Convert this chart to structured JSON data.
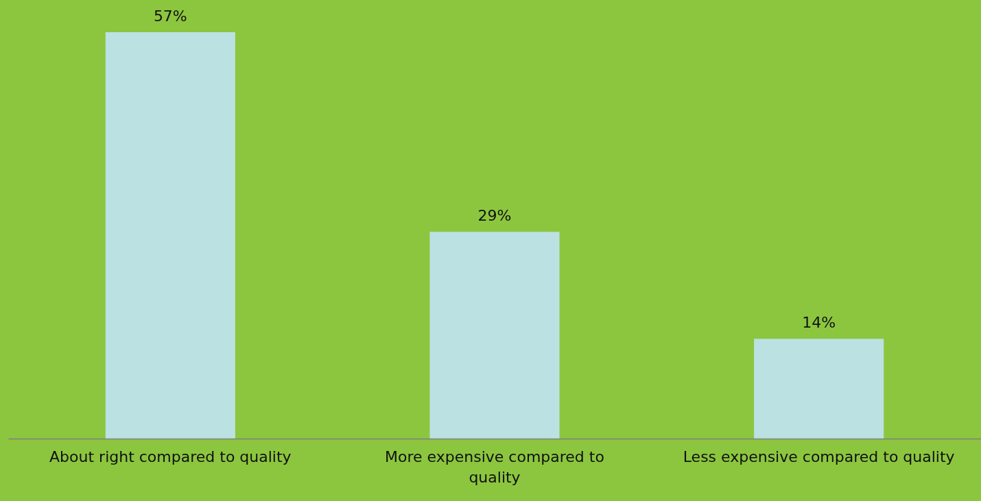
{
  "chart_data": {
    "type": "bar",
    "categories": [
      "About right compared to quality",
      "More expensive compared to quality",
      "Less expensive compared to quality"
    ],
    "values": [
      57,
      29,
      14
    ],
    "color": "#bce1e3",
    "value_labels": [
      "57%",
      "29%",
      "14%"
    ]
  }
}
